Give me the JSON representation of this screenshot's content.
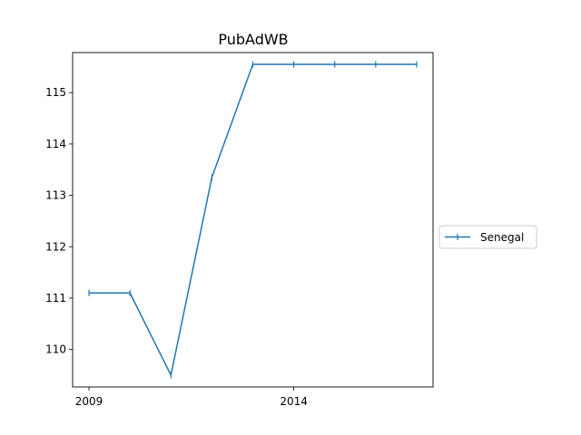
{
  "chart_data": {
    "type": "line",
    "title": "PubAdWB",
    "xlabel": "",
    "ylabel": "",
    "x": [
      2009,
      2010,
      2011,
      2012,
      2013,
      2014,
      2015,
      2016,
      2017
    ],
    "series": [
      {
        "name": "Senegal",
        "values": [
          111.1,
          111.1,
          109.5,
          113.35,
          115.55,
          115.55,
          115.55,
          115.55,
          115.55
        ],
        "color": "#1f77b4",
        "marker": "vertical-tick"
      }
    ],
    "xlim": [
      2008.6,
      2017.4
    ],
    "ylim": [
      109.27,
      115.78
    ],
    "x_ticks": [
      2009,
      2014
    ],
    "x_tick_labels": [
      "2009",
      "2014"
    ],
    "y_ticks": [
      110,
      111,
      112,
      113,
      114,
      115
    ],
    "y_tick_labels": [
      "110",
      "111",
      "112",
      "113",
      "114",
      "115"
    ],
    "grid": false,
    "legend_placement": "outside-right"
  }
}
